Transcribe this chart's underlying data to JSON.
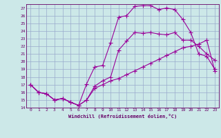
{
  "xlabel": "Windchill (Refroidissement éolien,°C)",
  "bg_color": "#cce8e8",
  "grid_color": "#99aacc",
  "line_color": "#990099",
  "xlim": [
    -0.5,
    23.5
  ],
  "ylim": [
    14,
    27.5
  ],
  "xticks": [
    0,
    1,
    2,
    3,
    4,
    5,
    6,
    7,
    8,
    9,
    10,
    11,
    12,
    13,
    14,
    15,
    16,
    17,
    18,
    19,
    20,
    21,
    22,
    23
  ],
  "yticks": [
    14,
    15,
    16,
    17,
    18,
    19,
    20,
    21,
    22,
    23,
    24,
    25,
    26,
    27
  ],
  "line1_x": [
    0,
    1,
    2,
    3,
    4,
    5,
    6,
    7,
    8,
    9,
    10,
    11,
    12,
    13,
    14,
    15,
    16,
    17,
    18,
    19,
    20,
    21,
    22,
    23
  ],
  "line1_y": [
    17,
    16,
    15.8,
    15.0,
    15.2,
    14.7,
    14.3,
    17.1,
    19.3,
    19.5,
    22.5,
    25.8,
    26.0,
    27.2,
    27.3,
    27.3,
    26.8,
    27.0,
    26.8,
    25.5,
    23.8,
    21.0,
    20.7,
    19.0
  ],
  "line2_x": [
    0,
    1,
    2,
    3,
    4,
    5,
    6,
    7,
    8,
    9,
    10,
    11,
    12,
    13,
    14,
    15,
    16,
    17,
    18,
    19,
    20,
    21,
    22,
    23
  ],
  "line2_y": [
    17,
    16,
    15.8,
    15.0,
    15.2,
    14.7,
    14.3,
    15.0,
    16.8,
    17.5,
    18.0,
    21.5,
    22.7,
    23.8,
    23.7,
    23.8,
    23.6,
    23.5,
    23.8,
    22.8,
    22.8,
    22.0,
    21.0,
    20.2
  ],
  "line3_x": [
    0,
    1,
    2,
    3,
    4,
    5,
    6,
    7,
    8,
    9,
    10,
    11,
    12,
    13,
    14,
    15,
    16,
    17,
    18,
    19,
    20,
    21,
    22,
    23
  ],
  "line3_y": [
    17,
    16,
    15.8,
    15.0,
    15.2,
    14.7,
    14.3,
    15.0,
    16.5,
    17.0,
    17.5,
    17.8,
    18.3,
    18.8,
    19.3,
    19.8,
    20.3,
    20.8,
    21.3,
    21.8,
    22.0,
    22.3,
    22.8,
    18.8
  ]
}
